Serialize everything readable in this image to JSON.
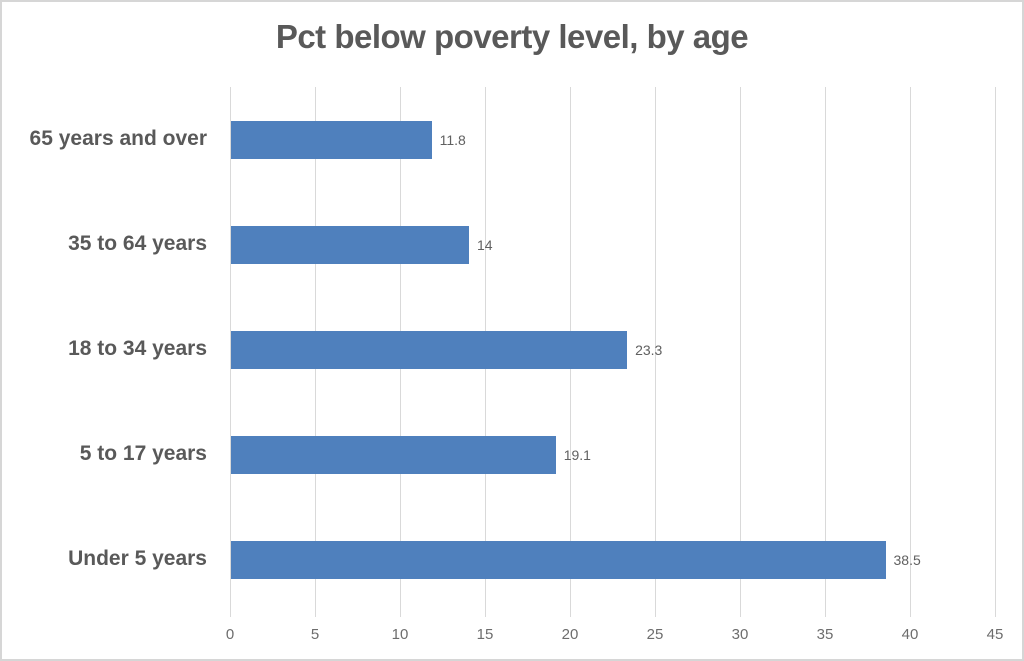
{
  "chart_data": {
    "type": "bar",
    "orientation": "horizontal",
    "title": "Pct below poverty level, by age",
    "categories": [
      "65 years and over",
      "35 to 64 years",
      "18 to 34 years",
      "5 to 17 years",
      "Under 5 years"
    ],
    "values": [
      11.8,
      14,
      23.3,
      19.1,
      38.5
    ],
    "value_labels": [
      "11.8",
      "14",
      "23.3",
      "19.1",
      "38.5"
    ],
    "xlabel": "",
    "ylabel": "",
    "xlim": [
      0,
      45
    ],
    "xticks": [
      0,
      5,
      10,
      15,
      20,
      25,
      30,
      35,
      40,
      45
    ],
    "grid": "vertical-only",
    "legend": "none",
    "bar_color": "#4f80bd",
    "gridline_color": "#d9d9d9",
    "title_color": "#595959",
    "label_color": "#595959",
    "tick_label_color": "#6d6d6d"
  }
}
